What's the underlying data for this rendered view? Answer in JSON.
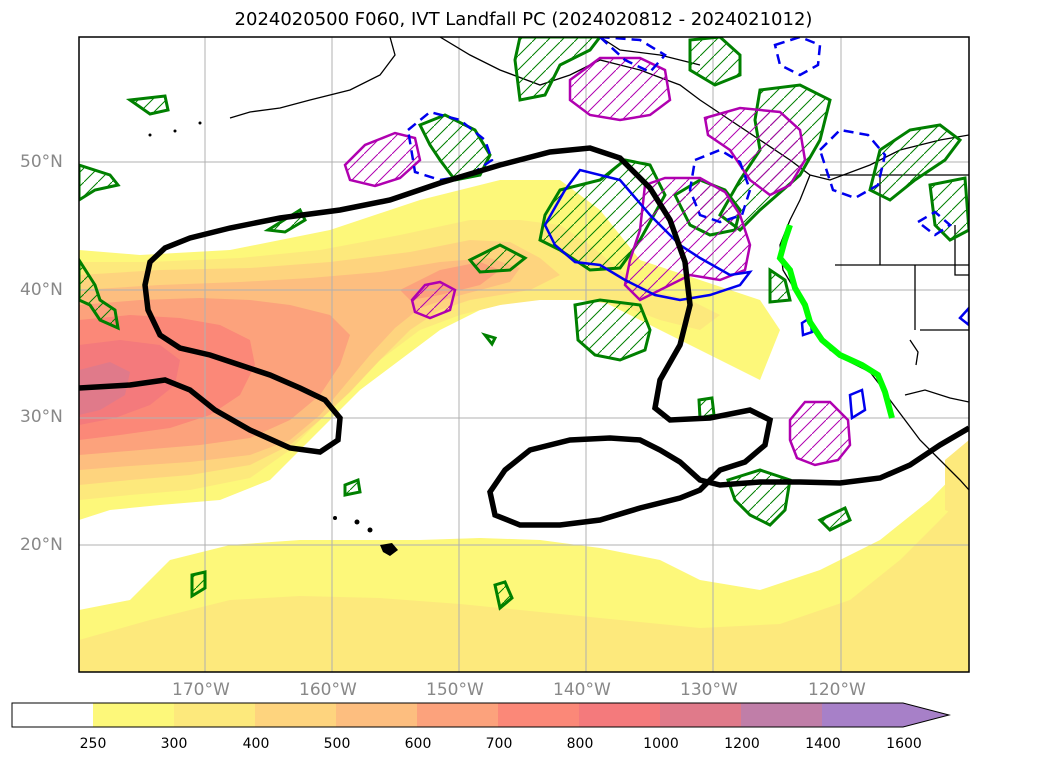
{
  "title": "2024020500 F060, IVT Landfall PC (2024020812 - 2024021012)",
  "axes": {
    "lat_labels": [
      "50°N",
      "40°N",
      "30°N",
      "20°N"
    ],
    "lon_labels": [
      "170°W",
      "160°W",
      "150°W",
      "140°W",
      "130°W",
      "120°W"
    ]
  },
  "colorbar": {
    "levels": [
      "250",
      "300",
      "400",
      "500",
      "600",
      "700",
      "800",
      "1000",
      "1200",
      "1400",
      "1600"
    ],
    "colors": [
      "#ffffff",
      "#fdf87a",
      "#fde97c",
      "#fed47e",
      "#fdbe7f",
      "#fca27c",
      "#fb8878",
      "#f47a7c",
      "#e07a8a",
      "#c07ea8",
      "#a780c8"
    ],
    "extend": "max"
  },
  "contour_colors": {
    "black_thick": "#000000",
    "green_hatched": "#008000",
    "magenta_hatched": "#b000b0",
    "blue_solid": "#0000ee",
    "blue_dashed": "#0000ee",
    "landfall_line": "#00ff00"
  }
}
